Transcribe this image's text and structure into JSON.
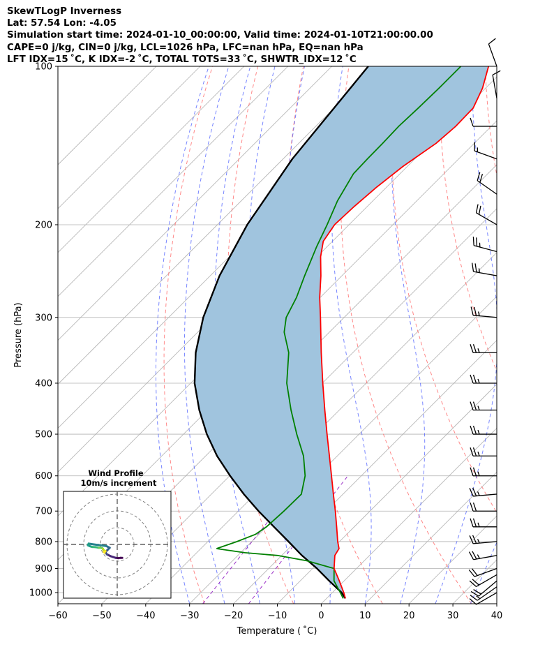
{
  "header": {
    "line1": "SkewTLogP Inverness",
    "line2": "Lat: 57.54   Lon: -4.05",
    "line3": "Simulation start time: 2024-01-10_00:00:00, Valid time: 2024-01-10T21:00:00.00",
    "line4": "CAPE=0 j/kg, CIN=0 j/kg, LCL=1026 hPa, LFC=nan hPa, EQ=nan hPa",
    "line5": "LFT IDX=15 ˚C, K IDX=-2 ˚C, TOTAL TOTS=33 ˚C, SHWTR_IDX=12 ˚C"
  },
  "chart_data": {
    "type": "line",
    "subtype": "skew-t log-p",
    "xlabel": "Temperature ( ˚C)",
    "ylabel": "Pressure (hPa)",
    "xlim": [
      -60,
      40
    ],
    "ylim": [
      1050,
      100
    ],
    "y_scale": "log",
    "x_ticks": [
      -60,
      -50,
      -40,
      -30,
      -20,
      -10,
      0,
      10,
      20,
      30,
      40
    ],
    "x_tick_labels": [
      "−60",
      "−50",
      "−40",
      "−30",
      "−20",
      "−10",
      "0",
      "10",
      "20",
      "30",
      "40"
    ],
    "y_ticks": [
      100,
      200,
      300,
      400,
      500,
      600,
      700,
      800,
      900,
      1000
    ],
    "y_tick_labels": [
      "100",
      "200",
      "300",
      "400",
      "500",
      "600",
      "700",
      "800",
      "900",
      "1000"
    ],
    "grid": true,
    "series": [
      {
        "role": "temperature",
        "color": "#ff0000",
        "pressure": [
          1026,
          1000,
          950,
          900,
          850,
          825,
          800,
          750,
          700,
          650,
          600,
          550,
          500,
          450,
          400,
          350,
          300,
          275,
          250,
          230,
          215,
          200,
          185,
          170,
          155,
          140,
          130,
          120,
          110,
          100
        ],
        "temperature": [
          4.3,
          2.6,
          -1.1,
          -5.1,
          -7.9,
          -8.5,
          -10.4,
          -14.0,
          -17.9,
          -22.2,
          -26.8,
          -31.8,
          -37.3,
          -43.3,
          -49.9,
          -57.2,
          -65.4,
          -70.1,
          -74.8,
          -79.2,
          -82.1,
          -83.3,
          -83.0,
          -82.3,
          -81.0,
          -78.7,
          -78.1,
          -78.3,
          -80.7,
          -84.3
        ]
      },
      {
        "role": "dewpoint",
        "color": "#008000",
        "pressure": [
          1026,
          1000,
          950,
          900,
          870,
          850,
          840,
          825,
          800,
          775,
          750,
          700,
          650,
          600,
          550,
          500,
          450,
          400,
          350,
          320,
          300,
          275,
          250,
          220,
          200,
          180,
          160,
          150,
          140,
          130,
          120,
          110,
          100
        ],
        "temperature": [
          3.8,
          1.8,
          -2.3,
          -5.1,
          -13.1,
          -21.0,
          -29.0,
          -36.4,
          -33.4,
          -30.8,
          -30.0,
          -29.6,
          -29.5,
          -32.8,
          -37.7,
          -44.2,
          -51.0,
          -58.1,
          -64.6,
          -70.3,
          -73.2,
          -75.4,
          -78.5,
          -82.4,
          -85.0,
          -88.1,
          -90.6,
          -90.8,
          -90.9,
          -91.1,
          -90.8,
          -90.6,
          -90.6
        ]
      },
      {
        "role": "parcel",
        "color": "#000000",
        "pressure": [
          1026,
          1000,
          950,
          900,
          850,
          800,
          750,
          700,
          650,
          600,
          550,
          500,
          450,
          400,
          350,
          300,
          250,
          200,
          150,
          100
        ],
        "temperature": [
          4.3,
          2.1,
          -3.4,
          -9.0,
          -15.4,
          -21.6,
          -28.3,
          -35.4,
          -42.6,
          -49.9,
          -57.4,
          -64.7,
          -71.9,
          -79.1,
          -85.8,
          -92.1,
          -97.9,
          -103.2,
          -107.9,
          -111.7
        ]
      }
    ],
    "shading": {
      "between": [
        "temperature",
        "parcel"
      ],
      "color": "#a0c4de"
    },
    "background_lines": {
      "isotherm_color": "#b0b0b0",
      "dry_adiabat_color": "#ff6060",
      "moist_adiabat_color": "#4a5cff",
      "mixing_ratio_color": "#9b30c8"
    },
    "wind_barbs": {
      "color": "#000000",
      "pressure": [
        1000,
        975,
        950,
        925,
        900,
        850,
        800,
        750,
        700,
        650,
        600,
        550,
        500,
        450,
        400,
        350,
        300,
        250,
        225,
        200,
        175,
        150,
        130,
        115,
        100
      ],
      "speed_kt": [
        10,
        15,
        20,
        20,
        20,
        25,
        25,
        25,
        20,
        25,
        25,
        25,
        25,
        25,
        25,
        25,
        25,
        25,
        25,
        20,
        20,
        15,
        10,
        10,
        10
      ],
      "direction_deg": [
        240,
        235,
        230,
        240,
        250,
        260,
        265,
        270,
        270,
        265,
        270,
        270,
        270,
        270,
        270,
        270,
        275,
        280,
        285,
        300,
        305,
        290,
        270,
        350,
        340
      ]
    },
    "inset": {
      "title_line1": "Wind Profile",
      "title_line2": "10m/s increment",
      "type": "hodograph",
      "rings": 3,
      "colormap": "viridis",
      "u": [
        3,
        2,
        0.5,
        -1,
        -2.5,
        -4,
        -6,
        -7,
        -6.5,
        -5.5,
        -4.5,
        -6.5,
        -10,
        -14,
        -17,
        -17.5,
        -16.5,
        -15,
        -13,
        -11,
        -10,
        -9,
        -8.5,
        -8.5,
        -8,
        -7,
        -8,
        -7.5
      ],
      "v": [
        -8,
        -8,
        -8.2,
        -8,
        -7.5,
        -7,
        -6,
        -5,
        -4,
        -3,
        -2,
        -1,
        -0.5,
        0,
        0.5,
        -0.5,
        -1,
        -1.5,
        -1.6,
        -2,
        -2,
        -2.2,
        -2.6,
        -3,
        -3.5,
        -4,
        -4.5,
        -5
      ]
    }
  }
}
